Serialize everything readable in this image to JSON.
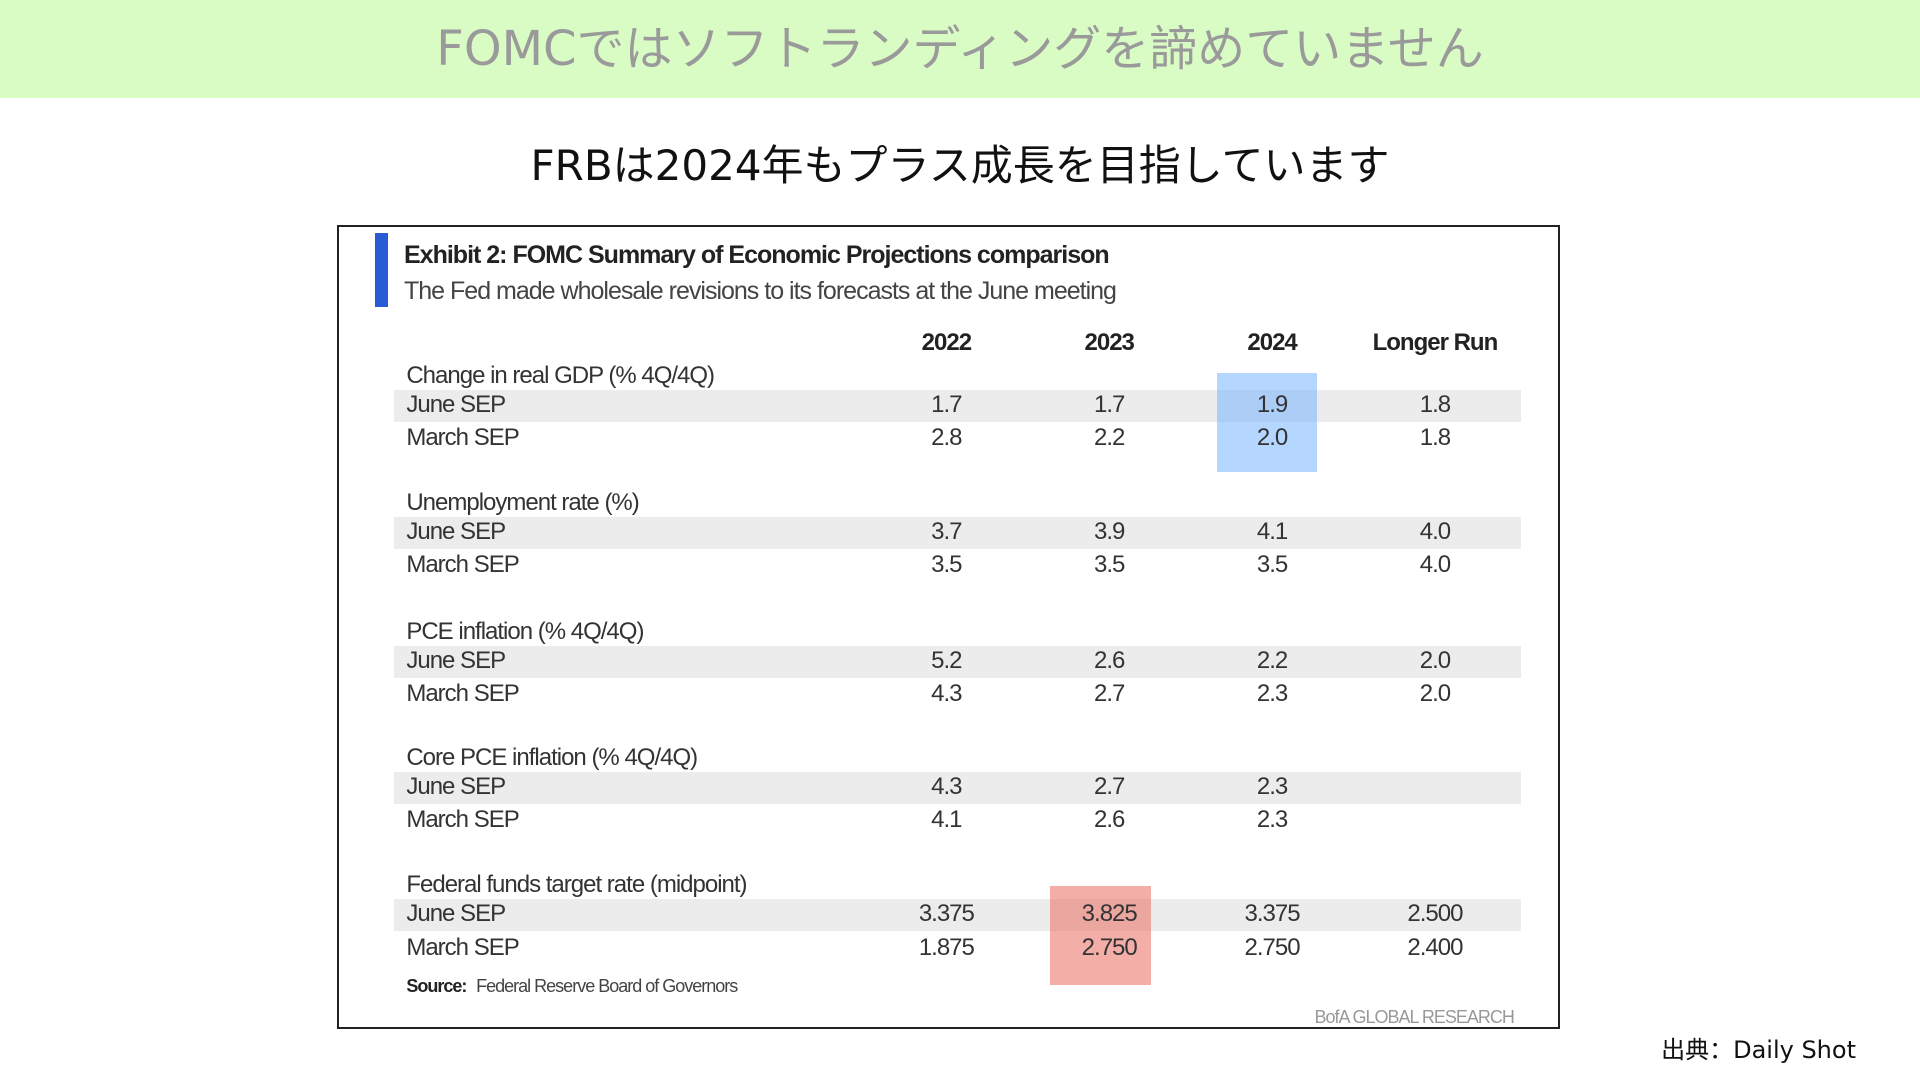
{
  "header": {
    "title": "FOMCではソフトランディングを諦めていません"
  },
  "subtitle": "FRBは2024年もプラス成長を目指しています",
  "exhibit": {
    "title": "Exhibit 2: FOMC Summary of Economic Projections comparison",
    "subtitle": "The Fed made wholesale revisions to its forecasts at the June meeting",
    "columns": [
      "2022",
      "2023",
      "2024",
      "Longer Run"
    ],
    "sections": [
      {
        "label": "Change in real GDP (% 4Q/4Q)",
        "rows": [
          {
            "label": "June SEP",
            "values": [
              "1.7",
              "1.7",
              "1.9",
              "1.8"
            ]
          },
          {
            "label": "March SEP",
            "values": [
              "2.8",
              "2.2",
              "2.0",
              "1.8"
            ]
          }
        ]
      },
      {
        "label": "Unemployment rate (%)",
        "rows": [
          {
            "label": "June SEP",
            "values": [
              "3.7",
              "3.9",
              "4.1",
              "4.0"
            ]
          },
          {
            "label": "March SEP",
            "values": [
              "3.5",
              "3.5",
              "3.5",
              "4.0"
            ]
          }
        ]
      },
      {
        "label": "PCE inflation (% 4Q/4Q)",
        "rows": [
          {
            "label": "June SEP",
            "values": [
              "5.2",
              "2.6",
              "2.2",
              "2.0"
            ]
          },
          {
            "label": "March SEP",
            "values": [
              "4.3",
              "2.7",
              "2.3",
              "2.0"
            ]
          }
        ]
      },
      {
        "label": "Core PCE inflation (% 4Q/4Q)",
        "rows": [
          {
            "label": "June SEP",
            "values": [
              "4.3",
              "2.7",
              "2.3",
              null
            ]
          },
          {
            "label": "March SEP",
            "values": [
              "4.1",
              "2.6",
              "2.3",
              null
            ]
          }
        ]
      },
      {
        "label": "Federal funds target rate (midpoint)",
        "rows": [
          {
            "label": "June SEP",
            "values": [
              "3.375",
              "3.825",
              "3.375",
              "2.500"
            ]
          },
          {
            "label": "March SEP",
            "values": [
              "1.875",
              "2.750",
              "2.750",
              "2.400"
            ]
          }
        ]
      }
    ],
    "source_label": "Source:",
    "source": "Federal Reserve Board of Governors",
    "brand": "BofA GLOBAL RESEARCH"
  },
  "credit": "出典：Daily Shot"
}
